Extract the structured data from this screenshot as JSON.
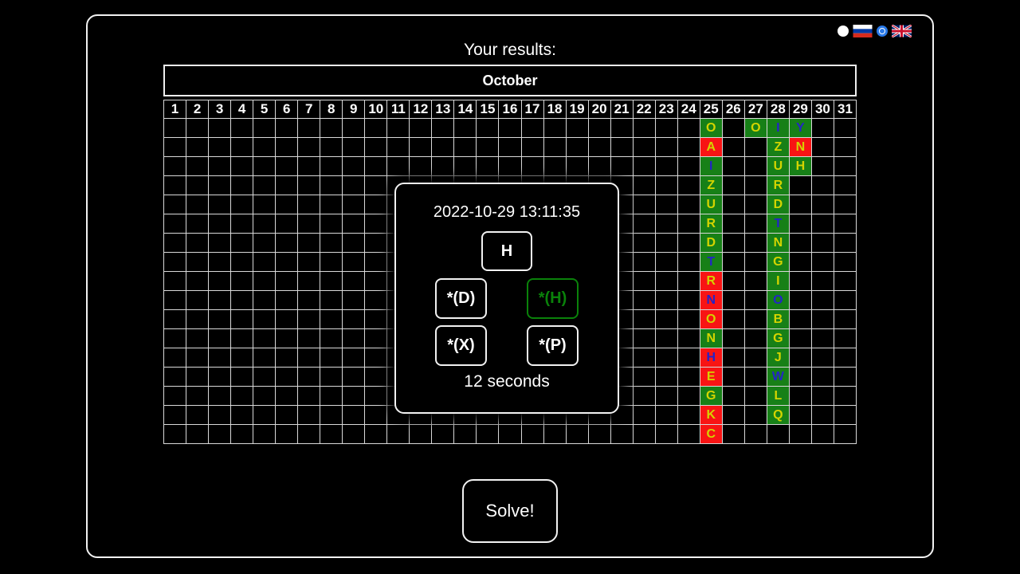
{
  "title": "Your results:",
  "language_switcher": {
    "options": [
      {
        "name": "russian",
        "flag": "ru",
        "selected": false
      },
      {
        "name": "english",
        "flag": "uk",
        "selected": true
      }
    ]
  },
  "calendar": {
    "month_label": "October",
    "day_headers": [
      "1",
      "2",
      "3",
      "4",
      "5",
      "6",
      "7",
      "8",
      "9",
      "10",
      "11",
      "12",
      "13",
      "14",
      "15",
      "16",
      "17",
      "18",
      "19",
      "20",
      "21",
      "22",
      "23",
      "24",
      "25",
      "26",
      "27",
      "28",
      "29",
      "30",
      "31"
    ],
    "num_rows": 17,
    "cells": [
      {
        "day": 25,
        "row": 1,
        "ch": "O",
        "bg": "green",
        "fg": "yellow"
      },
      {
        "day": 25,
        "row": 2,
        "ch": "A",
        "bg": "red",
        "fg": "yellow"
      },
      {
        "day": 25,
        "row": 3,
        "ch": "I",
        "bg": "green",
        "fg": "blue"
      },
      {
        "day": 25,
        "row": 4,
        "ch": "Z",
        "bg": "green",
        "fg": "yellow"
      },
      {
        "day": 25,
        "row": 5,
        "ch": "U",
        "bg": "green",
        "fg": "yellow"
      },
      {
        "day": 25,
        "row": 6,
        "ch": "R",
        "bg": "green",
        "fg": "yellow"
      },
      {
        "day": 25,
        "row": 7,
        "ch": "D",
        "bg": "green",
        "fg": "yellow"
      },
      {
        "day": 25,
        "row": 8,
        "ch": "T",
        "bg": "green",
        "fg": "blue"
      },
      {
        "day": 25,
        "row": 9,
        "ch": "R",
        "bg": "red",
        "fg": "yellow"
      },
      {
        "day": 25,
        "row": 10,
        "ch": "N",
        "bg": "red",
        "fg": "blue"
      },
      {
        "day": 25,
        "row": 11,
        "ch": "O",
        "bg": "red",
        "fg": "yellow"
      },
      {
        "day": 25,
        "row": 12,
        "ch": "N",
        "bg": "green",
        "fg": "yellow"
      },
      {
        "day": 25,
        "row": 13,
        "ch": "H",
        "bg": "red",
        "fg": "blue"
      },
      {
        "day": 25,
        "row": 14,
        "ch": "E",
        "bg": "red",
        "fg": "yellow"
      },
      {
        "day": 25,
        "row": 15,
        "ch": "G",
        "bg": "green",
        "fg": "yellow"
      },
      {
        "day": 25,
        "row": 16,
        "ch": "K",
        "bg": "red",
        "fg": "yellow"
      },
      {
        "day": 25,
        "row": 17,
        "ch": "C",
        "bg": "red",
        "fg": "yellow"
      },
      {
        "day": 27,
        "row": 1,
        "ch": "O",
        "bg": "green",
        "fg": "yellow"
      },
      {
        "day": 28,
        "row": 1,
        "ch": "I",
        "bg": "green",
        "fg": "blue"
      },
      {
        "day": 28,
        "row": 2,
        "ch": "Z",
        "bg": "green",
        "fg": "yellow"
      },
      {
        "day": 28,
        "row": 3,
        "ch": "U",
        "bg": "green",
        "fg": "yellow"
      },
      {
        "day": 28,
        "row": 4,
        "ch": "R",
        "bg": "green",
        "fg": "yellow"
      },
      {
        "day": 28,
        "row": 5,
        "ch": "D",
        "bg": "green",
        "fg": "yellow"
      },
      {
        "day": 28,
        "row": 6,
        "ch": "T",
        "bg": "green",
        "fg": "blue"
      },
      {
        "day": 28,
        "row": 7,
        "ch": "N",
        "bg": "green",
        "fg": "yellow"
      },
      {
        "day": 28,
        "row": 8,
        "ch": "G",
        "bg": "green",
        "fg": "yellow"
      },
      {
        "day": 28,
        "row": 9,
        "ch": "I",
        "bg": "green",
        "fg": "yellow"
      },
      {
        "day": 28,
        "row": 10,
        "ch": "O",
        "bg": "green",
        "fg": "blue"
      },
      {
        "day": 28,
        "row": 11,
        "ch": "B",
        "bg": "green",
        "fg": "yellow"
      },
      {
        "day": 28,
        "row": 12,
        "ch": "G",
        "bg": "green",
        "fg": "yellow"
      },
      {
        "day": 28,
        "row": 13,
        "ch": "J",
        "bg": "green",
        "fg": "yellow"
      },
      {
        "day": 28,
        "row": 14,
        "ch": "W",
        "bg": "green",
        "fg": "blue"
      },
      {
        "day": 28,
        "row": 15,
        "ch": "L",
        "bg": "green",
        "fg": "yellow"
      },
      {
        "day": 28,
        "row": 16,
        "ch": "Q",
        "bg": "green",
        "fg": "yellow"
      },
      {
        "day": 29,
        "row": 1,
        "ch": "Y",
        "bg": "green",
        "fg": "blue"
      },
      {
        "day": 29,
        "row": 2,
        "ch": "N",
        "bg": "red",
        "fg": "yellow"
      },
      {
        "day": 29,
        "row": 3,
        "ch": "H",
        "bg": "green",
        "fg": "yellow"
      }
    ]
  },
  "modal": {
    "timestamp": "2022-10-29 13:11:35",
    "buttons": [
      {
        "label": "H",
        "accent": "white"
      },
      {
        "label": "*(D)",
        "accent": "white"
      },
      {
        "label": "*(H)",
        "accent": "green"
      },
      {
        "label": "*(X)",
        "accent": "white"
      },
      {
        "label": "*(P)",
        "accent": "white"
      }
    ],
    "duration": "12 seconds"
  },
  "solve_button_label": "Solve!",
  "colors": {
    "cell_green": "#178017",
    "cell_red": "#f81414",
    "letter_yellow": "#d4d400",
    "letter_blue": "#2424c8",
    "accent_green": "#0a820a",
    "radio_blue": "#2979e8",
    "gridline": "#d9d9d9"
  }
}
